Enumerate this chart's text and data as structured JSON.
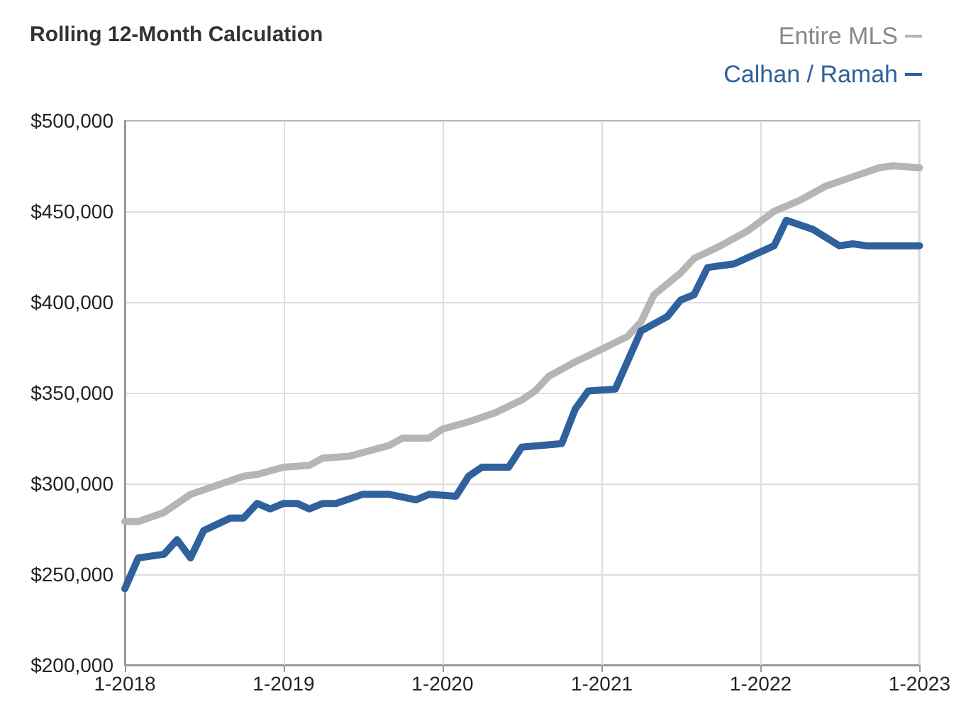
{
  "chart_data": {
    "type": "line",
    "title": "Rolling 12-Month Calculation",
    "x": [
      "2018-01",
      "2018-02",
      "2018-04",
      "2018-05",
      "2018-06",
      "2018-07",
      "2018-09",
      "2018-10",
      "2018-11",
      "2018-12",
      "2019-01",
      "2019-02",
      "2019-03",
      "2019-04",
      "2019-05",
      "2019-07",
      "2019-09",
      "2019-11",
      "2019-12",
      "2020-02",
      "2020-03",
      "2020-04",
      "2020-06",
      "2020-07",
      "2020-10",
      "2020-11",
      "2020-12",
      "2021-02",
      "2021-04",
      "2021-06",
      "2021-07",
      "2021-08",
      "2021-09",
      "2021-11",
      "2022-02",
      "2022-03",
      "2022-05",
      "2022-07",
      "2022-08",
      "2022-09",
      "2022-11",
      "2023-01"
    ],
    "series": [
      {
        "name": "Entire MLS",
        "color": "#b5b5b5",
        "x": [
          "2018-01",
          "2018-02",
          "2018-04",
          "2018-06",
          "2018-08",
          "2018-10",
          "2018-11",
          "2019-01",
          "2019-03",
          "2019-04",
          "2019-06",
          "2019-08",
          "2019-09",
          "2019-10",
          "2019-12",
          "2020-01",
          "2020-03",
          "2020-05",
          "2020-07",
          "2020-08",
          "2020-09",
          "2020-11",
          "2021-01",
          "2021-03",
          "2021-04",
          "2021-05",
          "2021-07",
          "2021-08",
          "2021-10",
          "2021-12",
          "2022-02",
          "2022-04",
          "2022-06",
          "2022-08",
          "2022-10",
          "2022-11",
          "2023-01"
        ],
        "values": [
          279000,
          279000,
          284000,
          294000,
          299000,
          304000,
          305000,
          309000,
          310000,
          314000,
          315000,
          319000,
          321000,
          325000,
          325000,
          330000,
          334000,
          339000,
          346000,
          351000,
          359000,
          367000,
          374000,
          381000,
          389000,
          404000,
          416000,
          424000,
          431000,
          439000,
          450000,
          456000,
          464000,
          469000,
          474000,
          475000,
          474000
        ]
      },
      {
        "name": "Calhan / Ramah",
        "color": "#2f619c",
        "values": [
          242000,
          259000,
          261000,
          269000,
          259000,
          274000,
          281000,
          281000,
          289000,
          286000,
          289000,
          289000,
          286000,
          289000,
          289000,
          294000,
          294000,
          291000,
          294000,
          293000,
          304000,
          309000,
          309000,
          320000,
          322000,
          341000,
          351000,
          352000,
          384000,
          392000,
          401000,
          404000,
          419000,
          421000,
          431000,
          445000,
          440000,
          431000,
          432000,
          431000,
          431000,
          431000
        ]
      }
    ],
    "ylim": [
      200000,
      500000
    ],
    "yticks": [
      {
        "value": 200000,
        "label": "$200,000"
      },
      {
        "value": 250000,
        "label": "$250,000"
      },
      {
        "value": 300000,
        "label": "$300,000"
      },
      {
        "value": 350000,
        "label": "$350,000"
      },
      {
        "value": 400000,
        "label": "$400,000"
      },
      {
        "value": 450000,
        "label": "$450,000"
      },
      {
        "value": 500000,
        "label": "$500,000"
      }
    ],
    "xlim": [
      "2018-01",
      "2023-01"
    ],
    "xticks": [
      {
        "value": "2018-01",
        "label": "1-2018"
      },
      {
        "value": "2019-01",
        "label": "1-2019"
      },
      {
        "value": "2020-01",
        "label": "1-2020"
      },
      {
        "value": "2021-01",
        "label": "1-2021"
      },
      {
        "value": "2022-01",
        "label": "1-2022"
      },
      {
        "value": "2023-01",
        "label": "1-2023"
      }
    ],
    "grid": true,
    "legend": "top right",
    "marker": "none",
    "line_style": "solid"
  }
}
